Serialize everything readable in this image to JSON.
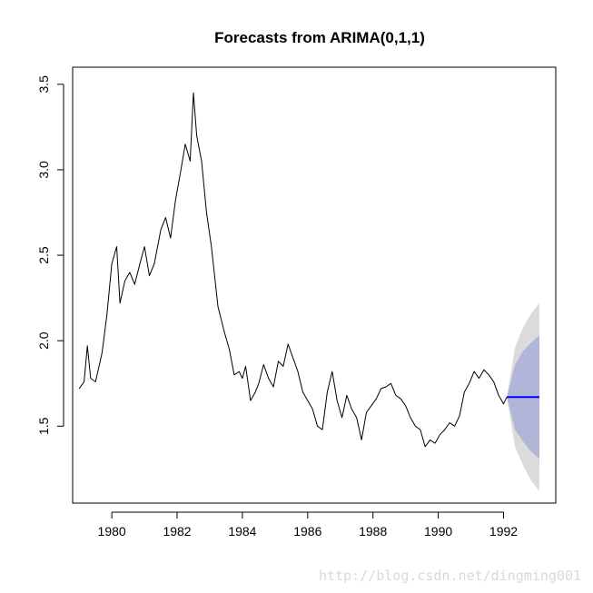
{
  "chart_data": {
    "type": "line",
    "title": "Forecasts from ARIMA(0,1,1)",
    "xlabel": "",
    "ylabel": "",
    "xlim": [
      1978.8,
      1993.6
    ],
    "ylim": [
      1.05,
      3.6
    ],
    "x_ticks": [
      1980,
      1982,
      1984,
      1986,
      1988,
      1990,
      1992
    ],
    "y_ticks": [
      1.5,
      2.0,
      2.5,
      3.0,
      3.5
    ],
    "x_tick_labels": [
      "1980",
      "1982",
      "1984",
      "1986",
      "1988",
      "1990",
      "1992"
    ],
    "y_tick_labels": [
      "1.5",
      "2.0",
      "2.5",
      "3.0",
      "3.5"
    ],
    "grid": false,
    "legend": "none",
    "series": [
      {
        "role": "observed",
        "color": "#000000",
        "x": [
          1979.0,
          1979.15,
          1979.25,
          1979.35,
          1979.5,
          1979.7,
          1979.85,
          1980.0,
          1980.15,
          1980.25,
          1980.4,
          1980.55,
          1980.7,
          1980.9,
          1981.0,
          1981.15,
          1981.3,
          1981.5,
          1981.65,
          1981.8,
          1981.95,
          1982.1,
          1982.25,
          1982.4,
          1982.5,
          1982.6,
          1982.75,
          1982.9,
          1983.05,
          1983.25,
          1983.45,
          1983.6,
          1983.75,
          1983.9,
          1984.0,
          1984.1,
          1984.25,
          1984.4,
          1984.5,
          1984.65,
          1984.8,
          1984.95,
          1985.1,
          1985.25,
          1985.4,
          1985.55,
          1985.7,
          1985.85,
          1986.0,
          1986.15,
          1986.3,
          1986.45,
          1986.6,
          1986.75,
          1986.9,
          1987.05,
          1987.2,
          1987.35,
          1987.5,
          1987.65,
          1987.8,
          1987.95,
          1988.1,
          1988.25,
          1988.4,
          1988.55,
          1988.7,
          1988.85,
          1989.0,
          1989.15,
          1989.3,
          1989.45,
          1989.6,
          1989.75,
          1989.9,
          1990.05,
          1990.2,
          1990.35,
          1990.5,
          1990.65,
          1990.8,
          1990.95,
          1991.1,
          1991.25,
          1991.4,
          1991.55,
          1991.7,
          1991.85,
          1992.0,
          1992.1
        ],
        "y": [
          1.72,
          1.76,
          1.97,
          1.78,
          1.76,
          1.93,
          2.15,
          2.45,
          2.55,
          2.22,
          2.35,
          2.4,
          2.33,
          2.48,
          2.55,
          2.38,
          2.45,
          2.65,
          2.72,
          2.6,
          2.82,
          2.98,
          3.15,
          3.05,
          3.45,
          3.2,
          3.05,
          2.75,
          2.55,
          2.2,
          2.05,
          1.95,
          1.8,
          1.82,
          1.78,
          1.85,
          1.65,
          1.7,
          1.75,
          1.86,
          1.78,
          1.73,
          1.88,
          1.85,
          1.98,
          1.9,
          1.82,
          1.7,
          1.65,
          1.6,
          1.5,
          1.48,
          1.7,
          1.82,
          1.65,
          1.55,
          1.68,
          1.6,
          1.55,
          1.42,
          1.58,
          1.62,
          1.66,
          1.72,
          1.73,
          1.75,
          1.68,
          1.66,
          1.62,
          1.55,
          1.5,
          1.48,
          1.38,
          1.42,
          1.4,
          1.45,
          1.48,
          1.52,
          1.5,
          1.56,
          1.7,
          1.75,
          1.82,
          1.78,
          1.83,
          1.8,
          1.76,
          1.68,
          1.63,
          1.67
        ]
      },
      {
        "role": "point-forecast",
        "color": "#0000ff",
        "x": [
          1992.1,
          1993.1
        ],
        "y": [
          1.67,
          1.67
        ]
      }
    ],
    "intervals": [
      {
        "level": "outer",
        "color": "#dbdbdb",
        "x": [
          1992.1,
          1992.35,
          1992.6,
          1992.85,
          1993.1
        ],
        "lower": [
          1.67,
          1.38,
          1.27,
          1.18,
          1.12
        ],
        "upper": [
          1.67,
          1.96,
          2.08,
          2.16,
          2.22
        ]
      },
      {
        "level": "inner",
        "color": "#b1b5d8",
        "x": [
          1992.1,
          1992.35,
          1992.6,
          1992.85,
          1993.1
        ],
        "lower": [
          1.67,
          1.48,
          1.41,
          1.35,
          1.31
        ],
        "upper": [
          1.67,
          1.86,
          1.94,
          1.99,
          2.03
        ]
      }
    ]
  },
  "watermark": "http://blog.csdn.net/dingming001"
}
